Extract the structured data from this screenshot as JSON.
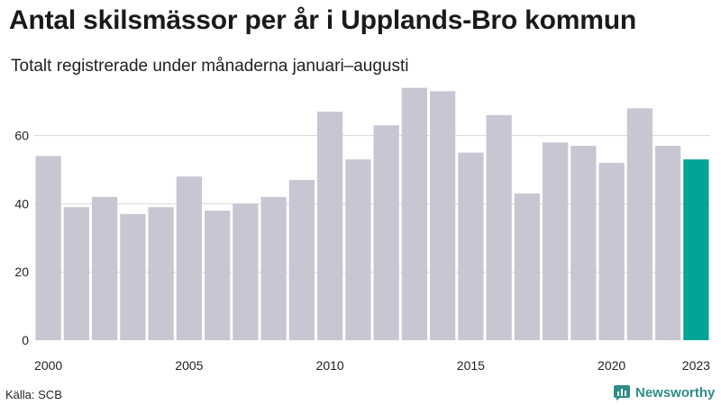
{
  "title": "Antal skilsmässor per år i Upplands-Bro kommun",
  "subtitle": "Totalt registrerade under månaderna januari–augusti",
  "source": "Källa: SCB",
  "brand": {
    "name": "Newsworthy",
    "icon": "newsworthy-logo-icon",
    "color": "#2e8c87"
  },
  "colors": {
    "bar": "#c8c6d2",
    "highlight": "#00a497",
    "grid": "#d8d8d8"
  },
  "chart_data": {
    "type": "bar",
    "title": "Antal skilsmässor per år i Upplands-Bro kommun",
    "subtitle": "Totalt registrerade under månaderna januari–augusti",
    "xlabel": "",
    "ylabel": "",
    "categories": [
      "2000",
      "2001",
      "2002",
      "2003",
      "2004",
      "2005",
      "2006",
      "2007",
      "2008",
      "2009",
      "2010",
      "2011",
      "2012",
      "2013",
      "2014",
      "2015",
      "2016",
      "2017",
      "2018",
      "2019",
      "2020",
      "2021",
      "2022",
      "2023"
    ],
    "values": [
      54,
      39,
      42,
      37,
      39,
      48,
      38,
      40,
      42,
      47,
      67,
      53,
      63,
      74,
      73,
      55,
      66,
      43,
      58,
      57,
      52,
      68,
      57,
      53
    ],
    "highlight": "2023",
    "ylim": [
      0,
      76
    ],
    "yticks": [
      0,
      20,
      40,
      60
    ],
    "xticks": [
      "2000",
      "2005",
      "2010",
      "2015",
      "2020",
      "2023"
    ],
    "grid": true
  }
}
